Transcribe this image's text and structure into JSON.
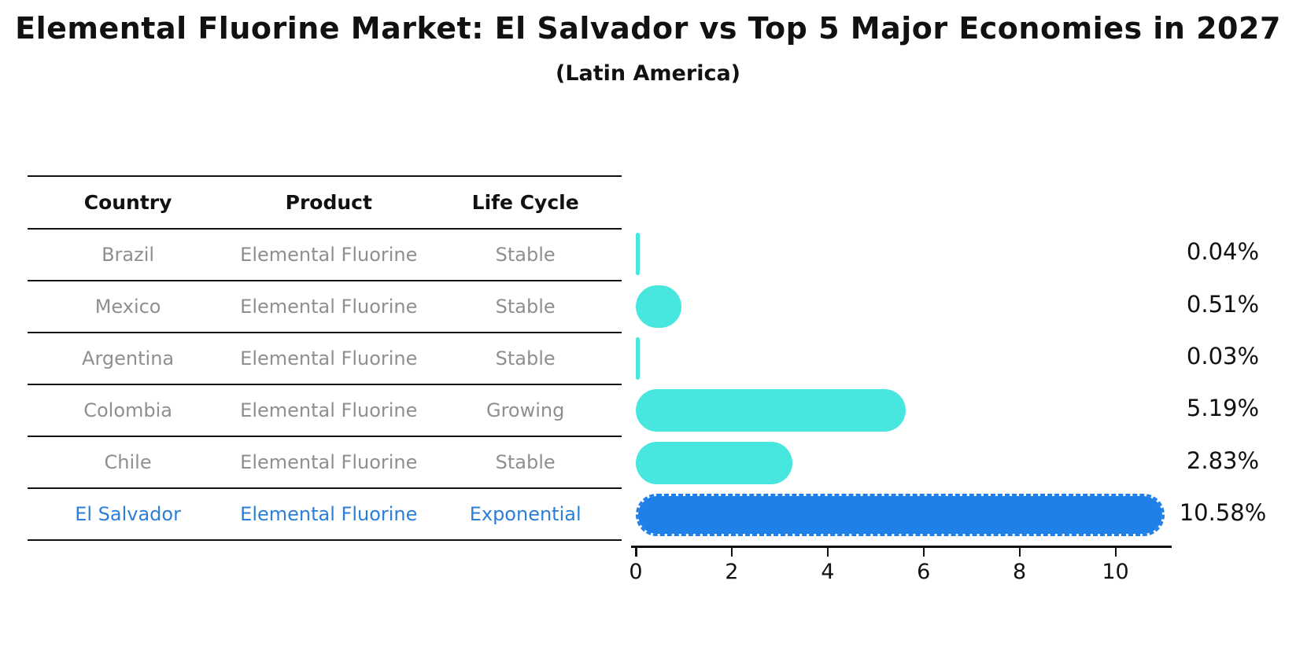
{
  "title": "Elemental Fluorine Market: El Salvador vs Top 5 Major Economies in 2027",
  "subtitle": "(Latin America)",
  "table": {
    "headers": [
      "Country",
      "Product",
      "Life Cycle"
    ],
    "rows": [
      {
        "country": "Brazil",
        "product": "Elemental Fluorine",
        "life_cycle": "Stable",
        "highlight": false
      },
      {
        "country": "Mexico",
        "product": "Elemental Fluorine",
        "life_cycle": "Stable",
        "highlight": false
      },
      {
        "country": "Argentina",
        "product": "Elemental Fluorine",
        "life_cycle": "Stable",
        "highlight": false
      },
      {
        "country": "Colombia",
        "product": "Elemental Fluorine",
        "life_cycle": "Growing",
        "highlight": false
      },
      {
        "country": "Chile",
        "product": "Elemental Fluorine",
        "life_cycle": "Stable",
        "highlight": false
      },
      {
        "country": "El Salvador",
        "product": "Elemental Fluorine",
        "life_cycle": "Exponential",
        "highlight": true
      }
    ]
  },
  "chart_data": {
    "type": "bar",
    "orientation": "horizontal",
    "categories": [
      "Brazil",
      "Mexico",
      "Argentina",
      "Colombia",
      "Chile",
      "El Salvador"
    ],
    "values": [
      0.04,
      0.51,
      0.03,
      5.19,
      2.83,
      10.58
    ],
    "value_labels": [
      "0.04%",
      "0.51%",
      "0.03%",
      "5.19%",
      "2.83%",
      "10.58%"
    ],
    "x_ticks": [
      0,
      2,
      4,
      6,
      8,
      10
    ],
    "xlim": [
      0,
      11.1
    ],
    "grid": false,
    "legend": false,
    "title": "Elemental Fluorine Market: El Salvador vs Top 5 Major Economies in 2027",
    "subtitle": "(Latin America)",
    "xlabel": "",
    "ylabel": ""
  },
  "colors": {
    "bar_default": "#47e6df",
    "bar_highlight": "#1e80e8",
    "highlight_text": "#2b7fd9",
    "table_text": "#8f8f8f",
    "header_text": "#111111",
    "axis": "#111111",
    "background": "#ffffff"
  }
}
